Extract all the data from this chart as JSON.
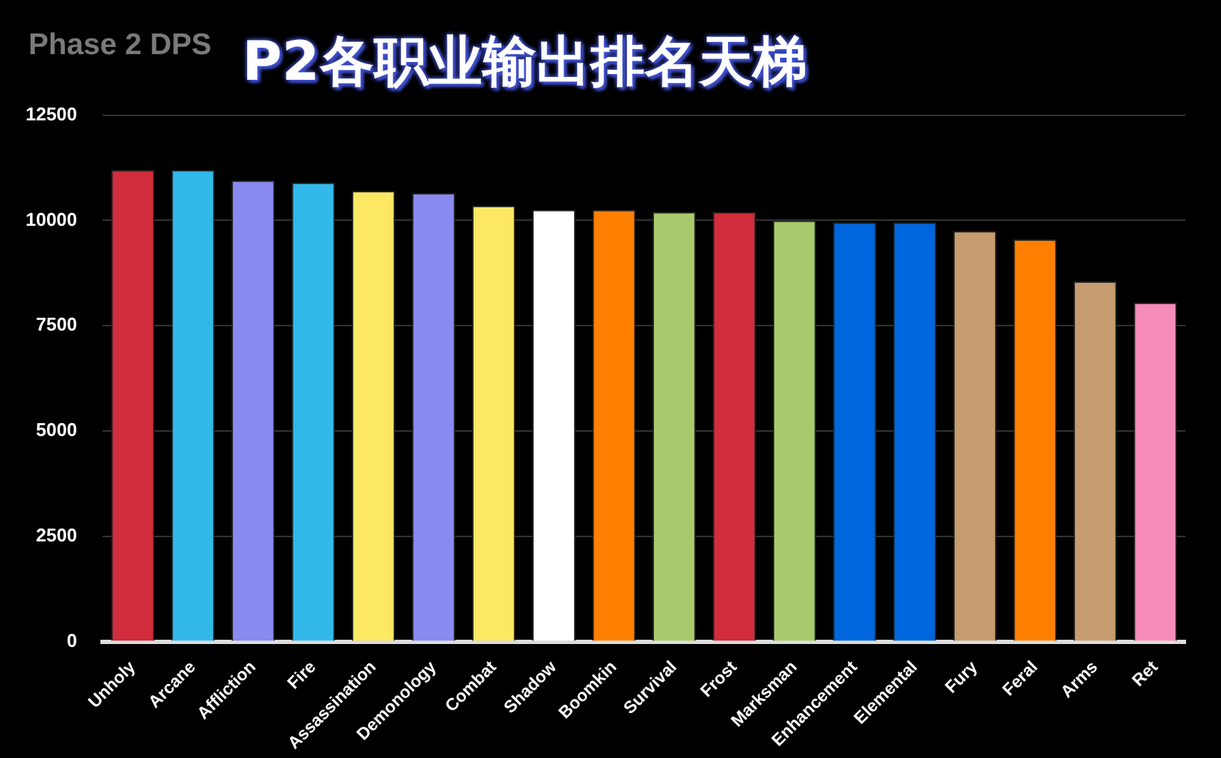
{
  "chart_data": {
    "type": "bar",
    "title": "P2各职业输出排名天梯",
    "subtitle": "Phase 2 DPS",
    "categories": [
      "Unholy",
      "Arcane",
      "Affliction",
      "Fire",
      "Assassination",
      "Demonology",
      "Combat",
      "Shadow",
      "Boomkin",
      "Survival",
      "Frost",
      "Marksman",
      "Enhancement",
      "Elemental",
      "Fury",
      "Feral",
      "Arms",
      "Ret"
    ],
    "values": [
      11200,
      11200,
      10950,
      10900,
      10700,
      10650,
      10350,
      10250,
      10250,
      10200,
      10200,
      10000,
      9950,
      9950,
      9750,
      9550,
      8550,
      8050
    ],
    "colors": [
      "#d12d3c",
      "#33b8ea",
      "#8a8af0",
      "#33b8ea",
      "#fde864",
      "#8a8af0",
      "#fde864",
      "#ffffff",
      "#ff8000",
      "#a9ca6c",
      "#d12d3c",
      "#a9ca6c",
      "#0066dd",
      "#0066dd",
      "#c79c6e",
      "#ff8000",
      "#c79c6e",
      "#f68cb8"
    ],
    "ylim": [
      0,
      12500
    ],
    "yticks": [
      0,
      2500,
      5000,
      7500,
      10000,
      12500
    ],
    "grid": "y"
  }
}
